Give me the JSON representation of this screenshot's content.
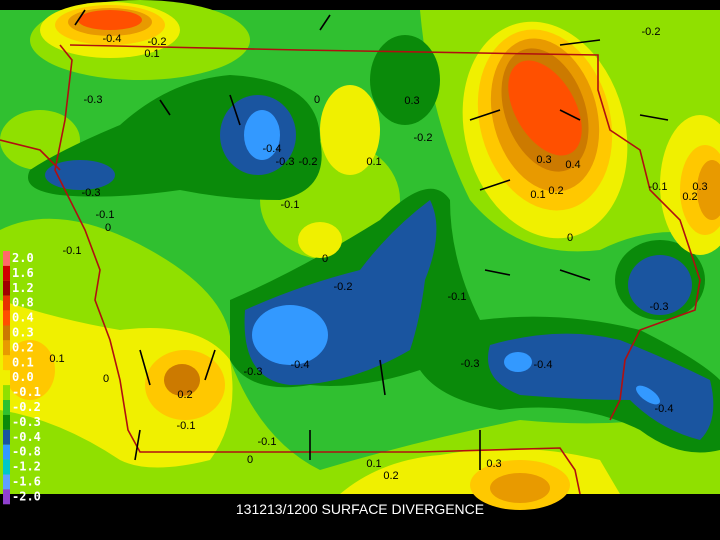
{
  "title": "131213/1200 SURFACE DIVERGENCE",
  "legend": [
    {
      "label": "2.0",
      "color": "#ff6a6a"
    },
    {
      "label": "1.6",
      "color": "#d00000"
    },
    {
      "label": "1.2",
      "color": "#a00000"
    },
    {
      "label": "0.8",
      "color": "#e83000"
    },
    {
      "label": "0.4",
      "color": "#ff5000"
    },
    {
      "label": "0.3",
      "color": "#cc7a00"
    },
    {
      "label": "0.2",
      "color": "#e89a00"
    },
    {
      "label": "0.1",
      "color": "#ffc800"
    },
    {
      "label": "0.0",
      "color": "#f0f000"
    },
    {
      "label": "-0.1",
      "color": "#90e000"
    },
    {
      "label": "-0.2",
      "color": "#30c030"
    },
    {
      "label": "-0.3",
      "color": "#0a8a0a"
    },
    {
      "label": "-0.4",
      "color": "#1a55a0"
    },
    {
      "label": "-0.8",
      "color": "#3399ff"
    },
    {
      "label": "-1.2",
      "color": "#00c8c8"
    },
    {
      "label": "-1.6",
      "color": "#60a0ff"
    },
    {
      "label": "-2.0",
      "color": "#9040d0"
    }
  ],
  "contour_labels": [
    "-0.4",
    "-0.2",
    "0.1",
    "-0.3",
    "0",
    "0.3",
    "-0.4",
    "-0.3",
    "-0.2",
    "0.1",
    "-0.2",
    "0.3",
    "0.4",
    "0.2",
    "0.1",
    "-0.3",
    "-0.1",
    "0",
    "-0.1",
    "-0.1",
    "0",
    "-0.2",
    "-0.1",
    "0",
    "-0.1",
    "0.3",
    "0.2",
    "-0.3",
    "-0.2",
    "0.1",
    "0",
    "0.2",
    "-0.1",
    "-0.3",
    "-0.4",
    "-0.3",
    "-0.4",
    "-0.4",
    "-0.1",
    "0",
    "0.1",
    "0.2",
    "0.3"
  ]
}
